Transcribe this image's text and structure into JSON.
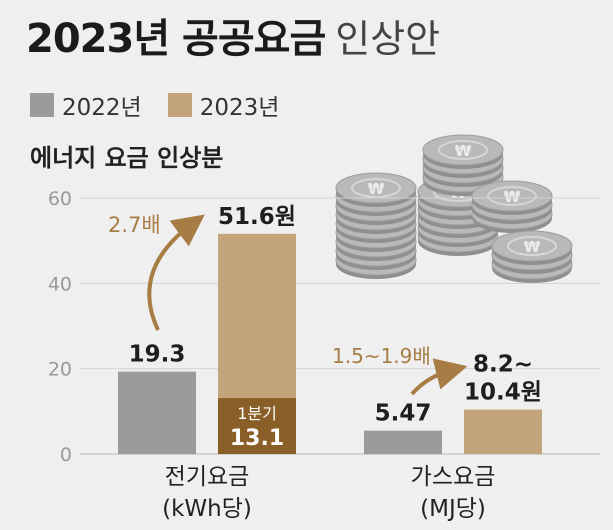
{
  "title": {
    "main": "2023년 공공요금",
    "sub": "인상안"
  },
  "legend": [
    {
      "label": "2022년",
      "color": "#9b9b9b"
    },
    {
      "label": "2023년",
      "color": "#c4a47a"
    }
  ],
  "subtitle": "에너지 요금 인상분",
  "colors": {
    "y2022": "#9b9b9b",
    "y2023": "#c4a47a",
    "q1": "#8a5f27",
    "arrow": "#a77d45",
    "coin": "#b9b9b9"
  },
  "chart_data": {
    "type": "bar",
    "title": "에너지 요금 인상분",
    "ylim": [
      0,
      60
    ],
    "yticks": [
      "0",
      "20",
      "40",
      "60"
    ],
    "grid": true,
    "legend_position": "top-left",
    "categories": [
      {
        "line1": "전기요금",
        "line2": "(kWh당)"
      },
      {
        "line1": "가스요금",
        "line2": "(MJ당)"
      }
    ],
    "series": [
      {
        "name": "2022년",
        "values": [
          19.3,
          5.47
        ],
        "labels": [
          "19.3",
          "5.47"
        ]
      },
      {
        "name": "2023년",
        "values": [
          51.6,
          10.4
        ],
        "labels": [
          "51.6원",
          "8.2~\n10.4원"
        ]
      }
    ],
    "q1_segment": {
      "category_index": 0,
      "value": 13.1,
      "label_top": "1분기",
      "label_value": "13.1"
    },
    "ratio_annotations": [
      "2.7배",
      "1.5~1.9배"
    ]
  }
}
